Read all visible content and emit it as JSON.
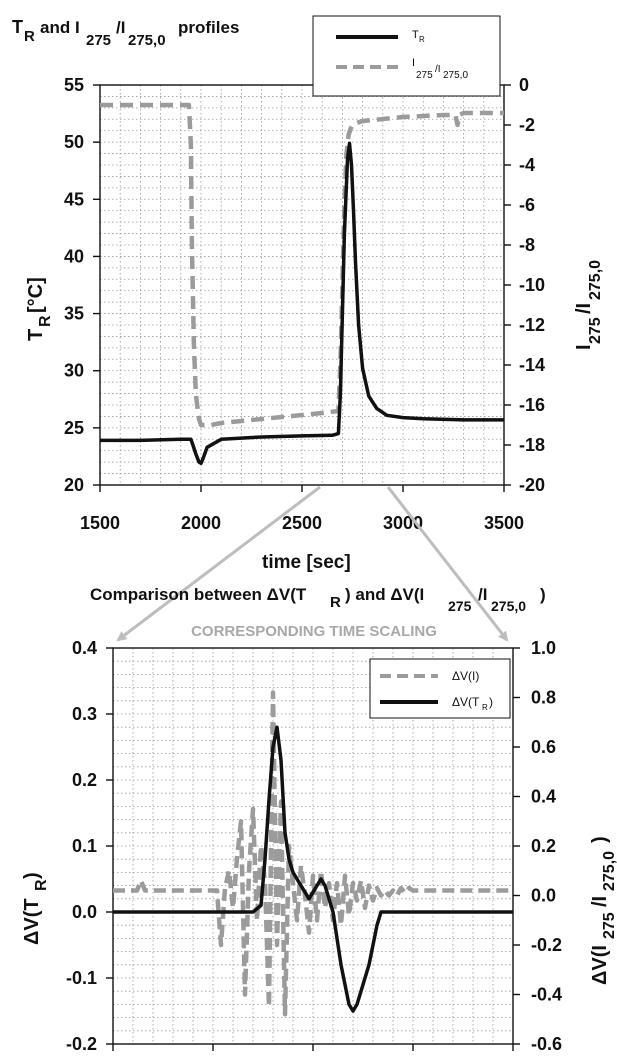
{
  "colors": {
    "series_black": "#111111",
    "series_gray": "#9b9b9b",
    "arrow_gray": "#bdbdbd",
    "grid": "#9a9a9a"
  },
  "figure": {
    "note": "CORRESPONDING TIME SCALING"
  },
  "chart_data": [
    {
      "type": "line",
      "title": "T_R and I_275/I_275,0 profiles",
      "xlabel": "time [sec]",
      "ylabel": "T_R [°C]",
      "ylabel_right": "I_275/I_275,0",
      "xlim": [
        1500,
        3500
      ],
      "ylim": [
        20,
        55
      ],
      "ylim_right": [
        -20,
        0
      ],
      "x_ticks": [
        "1500",
        "2000",
        "2500",
        "3000",
        "3500"
      ],
      "y_ticks": [
        "20",
        "25",
        "30",
        "35",
        "40",
        "45",
        "50",
        "55"
      ],
      "y_ticks_right": [
        "-20",
        "-18",
        "-16",
        "-14",
        "-12",
        "-10",
        "-8",
        "-6",
        "-4",
        "-2",
        "0"
      ],
      "grid": true,
      "legend_position": "top-right",
      "series": [
        {
          "name": "T_R",
          "axis": "left",
          "style": "solid",
          "x": [
            1500,
            1700,
            1900,
            1950,
            1960,
            1975,
            1990,
            2000,
            2010,
            2030,
            2100,
            2300,
            2500,
            2650,
            2680,
            2690,
            2700,
            2710,
            2725,
            2735,
            2745,
            2755,
            2765,
            2780,
            2800,
            2830,
            2870,
            2920,
            3000,
            3100,
            3300,
            3500
          ],
          "y": [
            23.9,
            23.9,
            24.0,
            24.0,
            23.5,
            22.7,
            22.0,
            21.9,
            22.3,
            23.3,
            24.0,
            24.2,
            24.3,
            24.35,
            24.5,
            28.0,
            35.0,
            42.0,
            48.5,
            49.9,
            48.0,
            44.0,
            39.5,
            34.0,
            30.2,
            27.8,
            26.7,
            26.1,
            25.9,
            25.8,
            25.7,
            25.7
          ]
        },
        {
          "name": "I_275/I_275,0",
          "axis": "right",
          "style": "dashed",
          "x": [
            1500,
            1600,
            1800,
            1900,
            1940,
            1950,
            1955,
            1965,
            1975,
            1990,
            2000,
            2005,
            2050,
            2100,
            2200,
            2400,
            2600,
            2680,
            2690,
            2700,
            2710,
            2720,
            2730,
            2740,
            2750,
            2770,
            2800,
            2900,
            3000,
            3200,
            3260,
            3270,
            3280,
            3300,
            3400,
            3500
          ],
          "y": [
            -1.0,
            -1.0,
            -1.0,
            -1.0,
            -1.0,
            -3.0,
            -8.0,
            -13.0,
            -15.5,
            -16.7,
            -17.0,
            -17.0,
            -17.0,
            -16.9,
            -16.8,
            -16.6,
            -16.4,
            -16.3,
            -14.0,
            -10.0,
            -6.0,
            -3.5,
            -2.5,
            -2.2,
            -2.0,
            -1.9,
            -1.8,
            -1.7,
            -1.6,
            -1.5,
            -1.5,
            -2.0,
            -1.5,
            -1.4,
            -1.4,
            -1.4
          ]
        }
      ]
    },
    {
      "type": "line",
      "title": "Comparison between ΔV(T_R) and ΔV(I_275/I_275,0)",
      "xlabel": "",
      "ylabel": "ΔV(T_R)",
      "ylabel_right": "ΔV(I_275/I_275,0)",
      "xlim": [
        0,
        100
      ],
      "ylim": [
        -0.2,
        0.4
      ],
      "ylim_right": [
        -0.6,
        1.0
      ],
      "y_ticks": [
        "-0.2",
        "-0.1",
        "0.0",
        "0.1",
        "0.2",
        "0.3",
        "0.4"
      ],
      "y_ticks_right": [
        "-0.6",
        "-0.4",
        "-0.2",
        "0.0",
        "0.2",
        "0.4",
        "0.6",
        "0.8",
        "1.0"
      ],
      "grid": true,
      "legend_position": "top-right",
      "series": [
        {
          "name": "ΔV(I)",
          "axis": "right",
          "style": "dashed",
          "x": [
            0,
            6,
            7,
            8,
            12,
            20,
            26,
            27,
            28,
            29,
            30,
            31,
            32,
            33,
            34,
            35,
            36,
            37,
            38,
            39,
            40,
            41,
            42,
            43,
            44,
            45,
            46,
            47,
            48,
            49,
            50,
            51,
            52,
            53,
            54,
            55,
            56,
            57,
            58,
            59,
            60,
            61,
            62,
            63,
            64,
            65,
            66,
            67,
            68,
            69,
            70,
            71,
            72,
            73,
            74,
            75,
            76,
            77,
            78,
            79,
            80,
            82,
            84,
            86,
            100
          ],
          "y": [
            0.02,
            0.02,
            0.06,
            0.02,
            0.02,
            0.02,
            0.02,
            -0.2,
            0.03,
            0.1,
            -0.05,
            0.15,
            0.3,
            -0.4,
            0.1,
            0.35,
            -0.1,
            0.2,
            0.05,
            -0.45,
            0.82,
            -0.2,
            0.38,
            -0.48,
            0.2,
            0.05,
            -0.1,
            0.12,
            0.0,
            -0.15,
            0.08,
            -0.1,
            0.1,
            -0.05,
            0.05,
            -0.1,
            0.05,
            -0.12,
            0.08,
            -0.08,
            0.05,
            -0.02,
            0.06,
            -0.05,
            0.04,
            -0.02,
            0.03,
            0.0,
            0.02,
            0.0,
            0.02,
            0.0,
            0.03,
            0.01,
            0.03,
            0.02,
            0.02,
            0.02,
            0.02,
            0.02,
            0.02,
            0.02,
            0.02,
            0.02,
            0.02
          ]
        },
        {
          "name": "ΔV(T_R)",
          "axis": "left",
          "style": "solid",
          "x": [
            0,
            35,
            37,
            38,
            39,
            40,
            41,
            42,
            43,
            44,
            45,
            46,
            47,
            48,
            49,
            50,
            51,
            52,
            53,
            54,
            55,
            56,
            57,
            58,
            59,
            60,
            61,
            62,
            63,
            64,
            65,
            66,
            67,
            70,
            100
          ],
          "y": [
            0.0,
            0.0,
            0.01,
            0.08,
            0.17,
            0.25,
            0.28,
            0.23,
            0.12,
            0.08,
            0.06,
            0.05,
            0.04,
            0.03,
            0.02,
            0.03,
            0.04,
            0.05,
            0.04,
            0.02,
            0.0,
            -0.04,
            -0.08,
            -0.11,
            -0.14,
            -0.15,
            -0.14,
            -0.12,
            -0.1,
            -0.08,
            -0.05,
            -0.02,
            0.0,
            0.0,
            0.0
          ]
        }
      ]
    }
  ]
}
